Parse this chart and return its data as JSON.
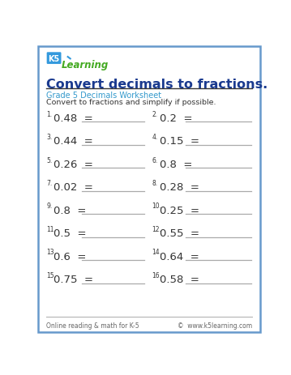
{
  "title": "Convert decimals to fractions.",
  "subtitle": "Grade 5 Decimals Worksheet",
  "instruction": "Convert to fractions and simplify if possible.",
  "problems_left": [
    {
      "num": "1.",
      "val": "0.48"
    },
    {
      "num": "3.",
      "val": "0.44"
    },
    {
      "num": "5.",
      "val": "0.26"
    },
    {
      "num": "7.",
      "val": "0.02"
    },
    {
      "num": "9.",
      "val": "0.8"
    },
    {
      "num": "11.",
      "val": "0.5"
    },
    {
      "num": "13.",
      "val": "0.6"
    },
    {
      "num": "15.",
      "val": "0.75"
    }
  ],
  "problems_right": [
    {
      "num": "2.",
      "val": "0.2"
    },
    {
      "num": "4.",
      "val": "0.15"
    },
    {
      "num": "6.",
      "val": "0.8"
    },
    {
      "num": "8.",
      "val": "0.28"
    },
    {
      "num": "10.",
      "val": "0.25"
    },
    {
      "num": "12.",
      "val": "0.55"
    },
    {
      "num": "14.",
      "val": "0.64"
    },
    {
      "num": "16.",
      "val": "0.58"
    }
  ],
  "footer_left": "Online reading & math for K-5",
  "footer_right": "©  www.k5learning.com",
  "border_color": "#6699cc",
  "title_color": "#1a3a8f",
  "subtitle_color": "#3399cc",
  "bg_color": "#ffffff",
  "line_color": "#aaaaaa",
  "title_line_color": "#333333",
  "problem_color": "#333333",
  "num_color": "#333333",
  "footer_color": "#666666"
}
